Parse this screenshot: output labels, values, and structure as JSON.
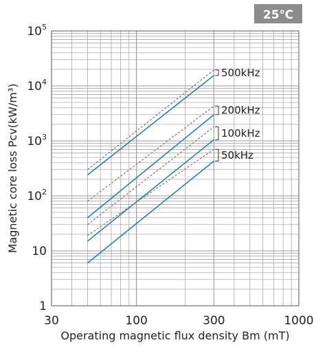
{
  "badge": "25℃",
  "chart_data": {
    "type": "line",
    "x_scale": "log",
    "y_scale": "log",
    "xlim": [
      30,
      1000
    ],
    "ylim": [
      1,
      100000
    ],
    "xlabel": "Operating magnetic flux density Bm (mT)",
    "ylabel": "Magnetic core loss Pcv(kW/m³)",
    "x_ticks": [
      "30",
      "100",
      "300",
      "1000"
    ],
    "y_ticks": [
      {
        "base": "1",
        "exp": ""
      },
      {
        "base": "10",
        "exp": ""
      },
      {
        "base": "10",
        "exp": "2"
      },
      {
        "base": "10",
        "exp": "3"
      },
      {
        "base": "10",
        "exp": "4"
      },
      {
        "base": "10",
        "exp": "5"
      }
    ],
    "grid": true,
    "series": [
      {
        "name": "500kHz",
        "x": [
          50,
          300
        ],
        "solid": [
          240,
          15500
        ],
        "dashed": [
          300,
          19500
        ]
      },
      {
        "name": "200kHz",
        "x": [
          50,
          300
        ],
        "solid": [
          40,
          3000
        ],
        "dashed": [
          80,
          4300
        ]
      },
      {
        "name": "100kHz",
        "x": [
          50,
          300
        ],
        "solid": [
          15,
          1050
        ],
        "dashed": [
          30,
          1800
        ]
      },
      {
        "name": "50kHz",
        "x": [
          50,
          300
        ],
        "solid": [
          6,
          430
        ],
        "dashed": [
          19,
          700
        ]
      }
    ],
    "colors": {
      "solid": "#2a7fa8",
      "dashed": "#777777",
      "grid": "#9a9a9a",
      "badge": "#8c8c8c"
    }
  }
}
